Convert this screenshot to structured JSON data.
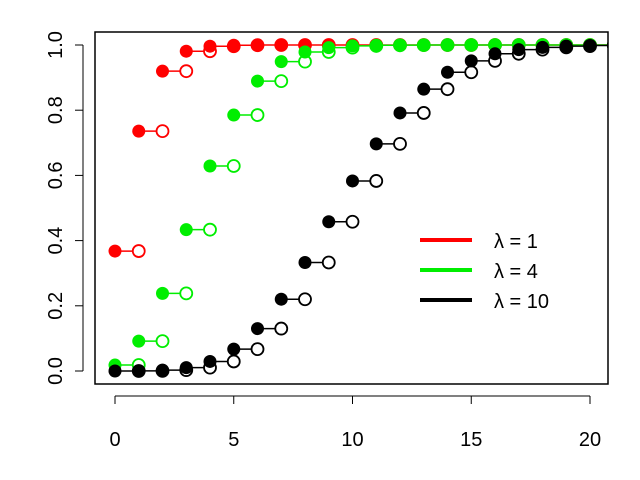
{
  "chart_data": {
    "type": "step",
    "title": "",
    "xlabel": "",
    "ylabel": "",
    "xlim": [
      -0.8,
      20.8
    ],
    "ylim": [
      -0.04,
      1.04
    ],
    "grid": false,
    "legend_position": "right-center",
    "x_ticks": [
      "0",
      "5",
      "10",
      "15",
      "20"
    ],
    "y_ticks": [
      "0.0",
      "0.2",
      "0.4",
      "0.6",
      "0.8",
      "1.0"
    ],
    "x": [
      0,
      1,
      2,
      3,
      4,
      5,
      6,
      7,
      8,
      9,
      10,
      11,
      12,
      13,
      14,
      15,
      16,
      17,
      18,
      19,
      20
    ],
    "series": [
      {
        "name": "λ = 1",
        "color": "#ff0000",
        "values": [
          0.3679,
          0.7358,
          0.9197,
          0.981,
          0.9963,
          0.9994,
          0.9999,
          1,
          1,
          1,
          1,
          1,
          1,
          1,
          1,
          1,
          1,
          1,
          1,
          1,
          1
        ]
      },
      {
        "name": "λ = 4",
        "color": "#00ee00",
        "values": [
          0.0183,
          0.0916,
          0.2381,
          0.4335,
          0.6288,
          0.7851,
          0.8893,
          0.9489,
          0.9786,
          0.9919,
          0.9972,
          0.9991,
          0.9997,
          0.9999,
          1,
          1,
          1,
          1,
          1,
          1,
          1
        ]
      },
      {
        "name": "λ = 10",
        "color": "#000000",
        "values": [
          0.0,
          0.0005,
          0.0028,
          0.0103,
          0.0293,
          0.0671,
          0.1301,
          0.2202,
          0.3328,
          0.4579,
          0.583,
          0.6968,
          0.7916,
          0.8645,
          0.9165,
          0.9513,
          0.973,
          0.9857,
          0.9928,
          0.9965,
          0.9984
        ]
      }
    ]
  }
}
